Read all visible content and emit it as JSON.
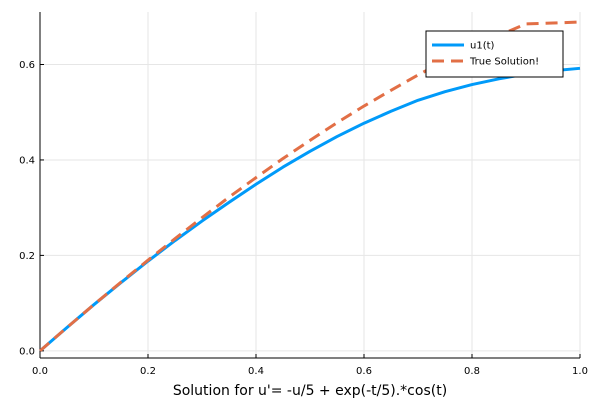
{
  "chart_data": {
    "type": "line",
    "title": "",
    "xlabel": "Solution for u'= -u/5 + exp(-t/5).*cos(t)",
    "ylabel": "",
    "xlim": [
      0,
      1
    ],
    "ylim": [
      -0.015,
      0.71
    ],
    "grid": true,
    "legend_position": "top-right",
    "x_ticks": [
      0,
      0.2,
      0.4,
      0.6,
      0.8,
      1.0
    ],
    "x_tick_labels": [
      "0.0",
      "0.2",
      "0.4",
      "0.6",
      "0.8",
      "1.0"
    ],
    "y_ticks": [
      0,
      0.2,
      0.4,
      0.6
    ],
    "y_tick_labels": [
      "0.0",
      "0.2",
      "0.4",
      "0.6"
    ],
    "series": [
      {
        "name": "u1(t)",
        "color": "#009af9",
        "style": "solid",
        "x": [
          0.0,
          0.05,
          0.1,
          0.15,
          0.2,
          0.25,
          0.3,
          0.35,
          0.4,
          0.45,
          0.5,
          0.55,
          0.6,
          0.65,
          0.7,
          0.75,
          0.8,
          0.85,
          0.9,
          0.95,
          1.0
        ],
        "y": [
          0.0,
          0.049,
          0.097,
          0.143,
          0.188,
          0.231,
          0.272,
          0.311,
          0.349,
          0.385,
          0.418,
          0.449,
          0.477,
          0.502,
          0.525,
          0.543,
          0.558,
          0.57,
          0.58,
          0.587,
          0.592
        ]
      },
      {
        "name": "True Solution!",
        "color": "#e26f46",
        "style": "dashed",
        "x": [
          0.0,
          0.05,
          0.1,
          0.15,
          0.2,
          0.25,
          0.3,
          0.35,
          0.4,
          0.45,
          0.5,
          0.55,
          0.6,
          0.65,
          0.7,
          0.75,
          0.8,
          0.85,
          0.9,
          0.95,
          1.0
        ],
        "y": [
          0.0,
          0.049,
          0.097,
          0.144,
          0.19,
          0.235,
          0.279,
          0.322,
          0.363,
          0.403,
          0.441,
          0.478,
          0.513,
          0.546,
          0.578,
          0.608,
          0.636,
          0.661,
          0.685,
          0.687,
          0.689
        ]
      }
    ]
  }
}
